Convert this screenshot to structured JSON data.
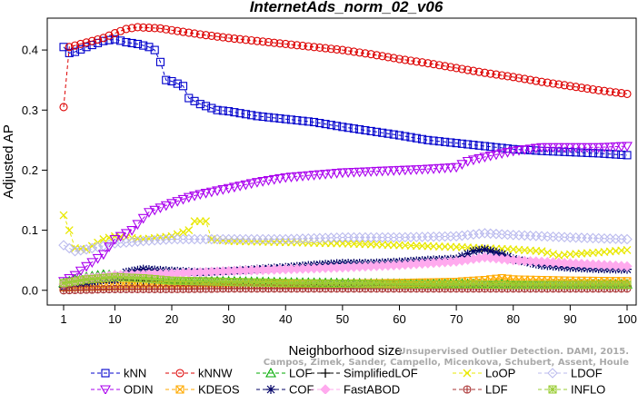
{
  "chart_data": {
    "type": "line",
    "title": "InternetAds_norm_02_v06",
    "xlabel": "Neighborhood size",
    "ylabel": "Adjusted AP",
    "xlim": [
      1,
      100
    ],
    "ylim": [
      -0.02,
      0.45
    ],
    "xticks": [
      1,
      10,
      20,
      30,
      40,
      50,
      60,
      70,
      80,
      90,
      100
    ],
    "yticks": [
      0.0,
      0.1,
      0.2,
      0.3,
      0.4
    ],
    "grid": false,
    "legend_position": "bottom",
    "watermark_lines": [
      "Unsupervised Outlier Detection. DAMI, 2015.",
      "Campos, Zimek, Sander, Campello, Micenkova, Schubert, Assent, Houle"
    ],
    "series": [
      {
        "name": "kNN",
        "color": "#0000cc",
        "marker": "square",
        "dash": "4,3",
        "points": [
          [
            1,
            0.405
          ],
          [
            2,
            0.395
          ],
          [
            3,
            0.397
          ],
          [
            5,
            0.405
          ],
          [
            8,
            0.415
          ],
          [
            10,
            0.418
          ],
          [
            12,
            0.413
          ],
          [
            14,
            0.41
          ],
          [
            16,
            0.405
          ],
          [
            17,
            0.4
          ],
          [
            18,
            0.38
          ],
          [
            19,
            0.35
          ],
          [
            20,
            0.348
          ],
          [
            22,
            0.34
          ],
          [
            23,
            0.32
          ],
          [
            25,
            0.31
          ],
          [
            28,
            0.3
          ],
          [
            30,
            0.298
          ],
          [
            35,
            0.29
          ],
          [
            40,
            0.285
          ],
          [
            45,
            0.28
          ],
          [
            50,
            0.272
          ],
          [
            55,
            0.265
          ],
          [
            60,
            0.258
          ],
          [
            65,
            0.25
          ],
          [
            70,
            0.245
          ],
          [
            75,
            0.24
          ],
          [
            80,
            0.235
          ],
          [
            85,
            0.232
          ],
          [
            90,
            0.23
          ],
          [
            95,
            0.228
          ],
          [
            100,
            0.225
          ]
        ]
      },
      {
        "name": "kNNW",
        "color": "#dd0000",
        "marker": "circle",
        "dash": "4,3",
        "points": [
          [
            1,
            0.305
          ],
          [
            2,
            0.405
          ],
          [
            4,
            0.41
          ],
          [
            6,
            0.415
          ],
          [
            8,
            0.42
          ],
          [
            10,
            0.428
          ],
          [
            12,
            0.435
          ],
          [
            14,
            0.438
          ],
          [
            18,
            0.436
          ],
          [
            20,
            0.433
          ],
          [
            25,
            0.426
          ],
          [
            30,
            0.42
          ],
          [
            35,
            0.415
          ],
          [
            40,
            0.41
          ],
          [
            45,
            0.405
          ],
          [
            50,
            0.4
          ],
          [
            55,
            0.393
          ],
          [
            60,
            0.385
          ],
          [
            65,
            0.378
          ],
          [
            70,
            0.37
          ],
          [
            75,
            0.362
          ],
          [
            80,
            0.355
          ],
          [
            85,
            0.347
          ],
          [
            90,
            0.34
          ],
          [
            95,
            0.333
          ],
          [
            100,
            0.327
          ]
        ]
      },
      {
        "name": "LOF",
        "color": "#00aa00",
        "marker": "triangle-up",
        "dash": "4,3",
        "points": [
          [
            1,
            0.012
          ],
          [
            3,
            0.018
          ],
          [
            5,
            0.022
          ],
          [
            8,
            0.026
          ],
          [
            10,
            0.025
          ],
          [
            15,
            0.022
          ],
          [
            20,
            0.018
          ],
          [
            30,
            0.015
          ],
          [
            40,
            0.013
          ],
          [
            50,
            0.012
          ],
          [
            60,
            0.011
          ],
          [
            70,
            0.011
          ],
          [
            80,
            0.01
          ],
          [
            90,
            0.01
          ],
          [
            100,
            0.01
          ]
        ]
      },
      {
        "name": "SimplifiedLOF",
        "color": "#000000",
        "marker": "plus",
        "dash": "4,3",
        "points": [
          [
            1,
            0.005
          ],
          [
            3,
            0.01
          ],
          [
            5,
            0.015
          ],
          [
            8,
            0.018
          ],
          [
            10,
            0.018
          ],
          [
            15,
            0.016
          ],
          [
            20,
            0.014
          ],
          [
            30,
            0.012
          ],
          [
            40,
            0.01
          ],
          [
            50,
            0.009
          ],
          [
            60,
            0.008
          ],
          [
            70,
            0.008
          ],
          [
            80,
            0.007
          ],
          [
            90,
            0.007
          ],
          [
            100,
            0.007
          ]
        ]
      },
      {
        "name": "LoOP",
        "color": "#e8e800",
        "marker": "cross",
        "dash": "4,3",
        "points": [
          [
            1,
            0.125
          ],
          [
            2,
            0.1
          ],
          [
            3,
            0.07
          ],
          [
            5,
            0.068
          ],
          [
            8,
            0.085
          ],
          [
            10,
            0.09
          ],
          [
            15,
            0.085
          ],
          [
            20,
            0.09
          ],
          [
            23,
            0.1
          ],
          [
            24,
            0.115
          ],
          [
            26,
            0.115
          ],
          [
            27,
            0.085
          ],
          [
            30,
            0.082
          ],
          [
            40,
            0.08
          ],
          [
            50,
            0.078
          ],
          [
            60,
            0.075
          ],
          [
            70,
            0.072
          ],
          [
            75,
            0.07
          ],
          [
            80,
            0.068
          ],
          [
            85,
            0.065
          ],
          [
            88,
            0.058
          ],
          [
            90,
            0.06
          ],
          [
            95,
            0.063
          ],
          [
            100,
            0.067
          ]
        ]
      },
      {
        "name": "LDOF",
        "color": "#bbbbee",
        "marker": "diamond",
        "dash": "4,3",
        "points": [
          [
            1,
            0.075
          ],
          [
            3,
            0.065
          ],
          [
            5,
            0.068
          ],
          [
            10,
            0.078
          ],
          [
            15,
            0.082
          ],
          [
            20,
            0.085
          ],
          [
            30,
            0.085
          ],
          [
            40,
            0.085
          ],
          [
            50,
            0.088
          ],
          [
            60,
            0.088
          ],
          [
            70,
            0.09
          ],
          [
            75,
            0.095
          ],
          [
            80,
            0.092
          ],
          [
            90,
            0.088
          ],
          [
            100,
            0.085
          ]
        ]
      },
      {
        "name": "ODIN",
        "color": "#aa00ee",
        "marker": "triangle-down",
        "dash": "4,3",
        "points": [
          [
            1,
            0.015
          ],
          [
            3,
            0.025
          ],
          [
            5,
            0.04
          ],
          [
            8,
            0.06
          ],
          [
            10,
            0.085
          ],
          [
            13,
            0.1
          ],
          [
            16,
            0.13
          ],
          [
            20,
            0.145
          ],
          [
            23,
            0.155
          ],
          [
            25,
            0.16
          ],
          [
            30,
            0.17
          ],
          [
            35,
            0.18
          ],
          [
            40,
            0.188
          ],
          [
            45,
            0.192
          ],
          [
            50,
            0.196
          ],
          [
            55,
            0.198
          ],
          [
            60,
            0.2
          ],
          [
            65,
            0.202
          ],
          [
            70,
            0.205
          ],
          [
            72,
            0.215
          ],
          [
            75,
            0.222
          ],
          [
            80,
            0.232
          ],
          [
            85,
            0.238
          ],
          [
            90,
            0.238
          ],
          [
            95,
            0.238
          ],
          [
            100,
            0.24
          ]
        ]
      },
      {
        "name": "KDEOS",
        "color": "#ffaa00",
        "marker": "square-x",
        "dash": "4,3",
        "points": [
          [
            1,
            0.005
          ],
          [
            5,
            0.006
          ],
          [
            10,
            0.007
          ],
          [
            20,
            0.008
          ],
          [
            30,
            0.009
          ],
          [
            40,
            0.01
          ],
          [
            50,
            0.011
          ],
          [
            60,
            0.012
          ],
          [
            70,
            0.014
          ],
          [
            75,
            0.017
          ],
          [
            78,
            0.02
          ],
          [
            80,
            0.018
          ],
          [
            90,
            0.016
          ],
          [
            100,
            0.015
          ]
        ]
      },
      {
        "name": "COF",
        "color": "#000066",
        "marker": "asterisk",
        "dash": "4,3",
        "points": [
          [
            1,
            0.005
          ],
          [
            3,
            0.01
          ],
          [
            5,
            0.012
          ],
          [
            8,
            0.018
          ],
          [
            10,
            0.018
          ],
          [
            12,
            0.03
          ],
          [
            15,
            0.035
          ],
          [
            18,
            0.033
          ],
          [
            20,
            0.032
          ],
          [
            25,
            0.03
          ],
          [
            30,
            0.032
          ],
          [
            35,
            0.035
          ],
          [
            40,
            0.038
          ],
          [
            45,
            0.042
          ],
          [
            50,
            0.045
          ],
          [
            55,
            0.045
          ],
          [
            60,
            0.047
          ],
          [
            65,
            0.05
          ],
          [
            70,
            0.052
          ],
          [
            73,
            0.065
          ],
          [
            75,
            0.068
          ],
          [
            78,
            0.06
          ],
          [
            80,
            0.052
          ],
          [
            85,
            0.042
          ],
          [
            90,
            0.038
          ],
          [
            95,
            0.036
          ],
          [
            100,
            0.035
          ]
        ]
      },
      {
        "name": "FastABOD",
        "color": "#ffaaee",
        "marker": "diamond-filled",
        "dash": "4,3",
        "points": [
          [
            1,
            0.01
          ],
          [
            5,
            0.02
          ],
          [
            10,
            0.025
          ],
          [
            20,
            0.028
          ],
          [
            30,
            0.032
          ],
          [
            40,
            0.035
          ],
          [
            50,
            0.038
          ],
          [
            60,
            0.042
          ],
          [
            70,
            0.048
          ],
          [
            75,
            0.055
          ],
          [
            80,
            0.05
          ],
          [
            90,
            0.045
          ],
          [
            100,
            0.04
          ]
        ]
      },
      {
        "name": "LDF",
        "color": "#aa3333",
        "marker": "circle-dot",
        "dash": "4,3",
        "points": [
          [
            1,
            0.0
          ],
          [
            5,
            0.001
          ],
          [
            10,
            0.002
          ],
          [
            20,
            0.002
          ],
          [
            30,
            0.003
          ],
          [
            40,
            0.003
          ],
          [
            50,
            0.003
          ],
          [
            60,
            0.003
          ],
          [
            70,
            0.003
          ],
          [
            80,
            0.003
          ],
          [
            90,
            0.003
          ],
          [
            100,
            0.003
          ]
        ]
      },
      {
        "name": "INFLO",
        "color": "#99cc33",
        "marker": "square-star",
        "dash": "4,3",
        "points": [
          [
            1,
            0.012
          ],
          [
            5,
            0.018
          ],
          [
            10,
            0.022
          ],
          [
            15,
            0.02
          ],
          [
            20,
            0.016
          ],
          [
            30,
            0.014
          ],
          [
            40,
            0.012
          ],
          [
            50,
            0.011
          ],
          [
            60,
            0.01
          ],
          [
            70,
            0.01
          ],
          [
            80,
            0.009
          ],
          [
            90,
            0.009
          ],
          [
            100,
            0.009
          ]
        ]
      }
    ]
  }
}
